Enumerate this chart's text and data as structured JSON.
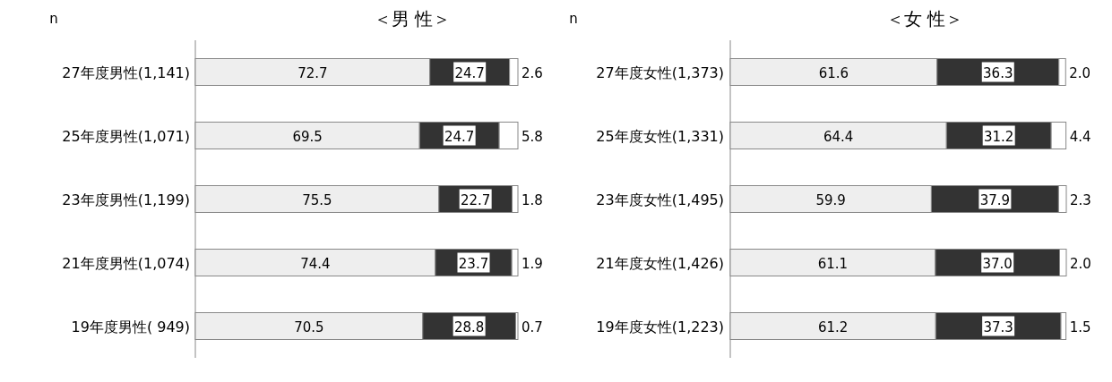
{
  "chart_data": [
    {
      "type": "bar",
      "orientation": "horizontal",
      "stacked": true,
      "title": "＜男 性＞",
      "annotations": [
        "n"
      ],
      "categories": [
        "27年度男性(1,141)",
        "25年度男性(1,071)",
        "23年度男性(1,199)",
        "21年度男性(1,074)",
        "19年度男性( 949)"
      ],
      "series": [
        {
          "color": "#eeeeee",
          "values": [
            72.7,
            69.5,
            75.5,
            74.4,
            70.5
          ],
          "value_labels": [
            "72.7",
            "69.5",
            "75.5",
            "74.4",
            "70.5"
          ]
        },
        {
          "color": "#333333",
          "values": [
            24.7,
            24.7,
            22.7,
            23.7,
            28.8
          ],
          "value_labels": [
            "24.7",
            "24.7",
            "22.7",
            "23.7",
            "28.8"
          ]
        },
        {
          "color": "#ffffff",
          "values": [
            2.6,
            5.8,
            1.8,
            1.9,
            0.7
          ],
          "value_labels": [
            "2.6",
            "5.8",
            "1.8",
            "1.9",
            "0.7"
          ]
        }
      ]
    },
    {
      "type": "bar",
      "orientation": "horizontal",
      "stacked": true,
      "title": "＜女 性＞",
      "annotations": [
        "n"
      ],
      "categories": [
        "27年度女性(1,373)",
        "25年度女性(1,331)",
        "23年度女性(1,495)",
        "21年度女性(1,426)",
        "19年度女性(1,223)"
      ],
      "series": [
        {
          "color": "#eeeeee",
          "values": [
            61.6,
            64.4,
            59.9,
            61.1,
            61.2
          ],
          "value_labels": [
            "61.6",
            "64.4",
            "59.9",
            "61.1",
            "61.2"
          ]
        },
        {
          "color": "#333333",
          "values": [
            36.3,
            31.2,
            37.9,
            37.0,
            37.3
          ],
          "value_labels": [
            "36.3",
            "31.2",
            "37.9",
            "37.0",
            "37.3"
          ]
        },
        {
          "color": "#ffffff",
          "values": [
            2.0,
            4.4,
            2.3,
            2.0,
            1.5
          ],
          "value_labels": [
            "2.0",
            "4.4",
            "2.3",
            "2.0",
            "1.5"
          ]
        }
      ]
    }
  ]
}
